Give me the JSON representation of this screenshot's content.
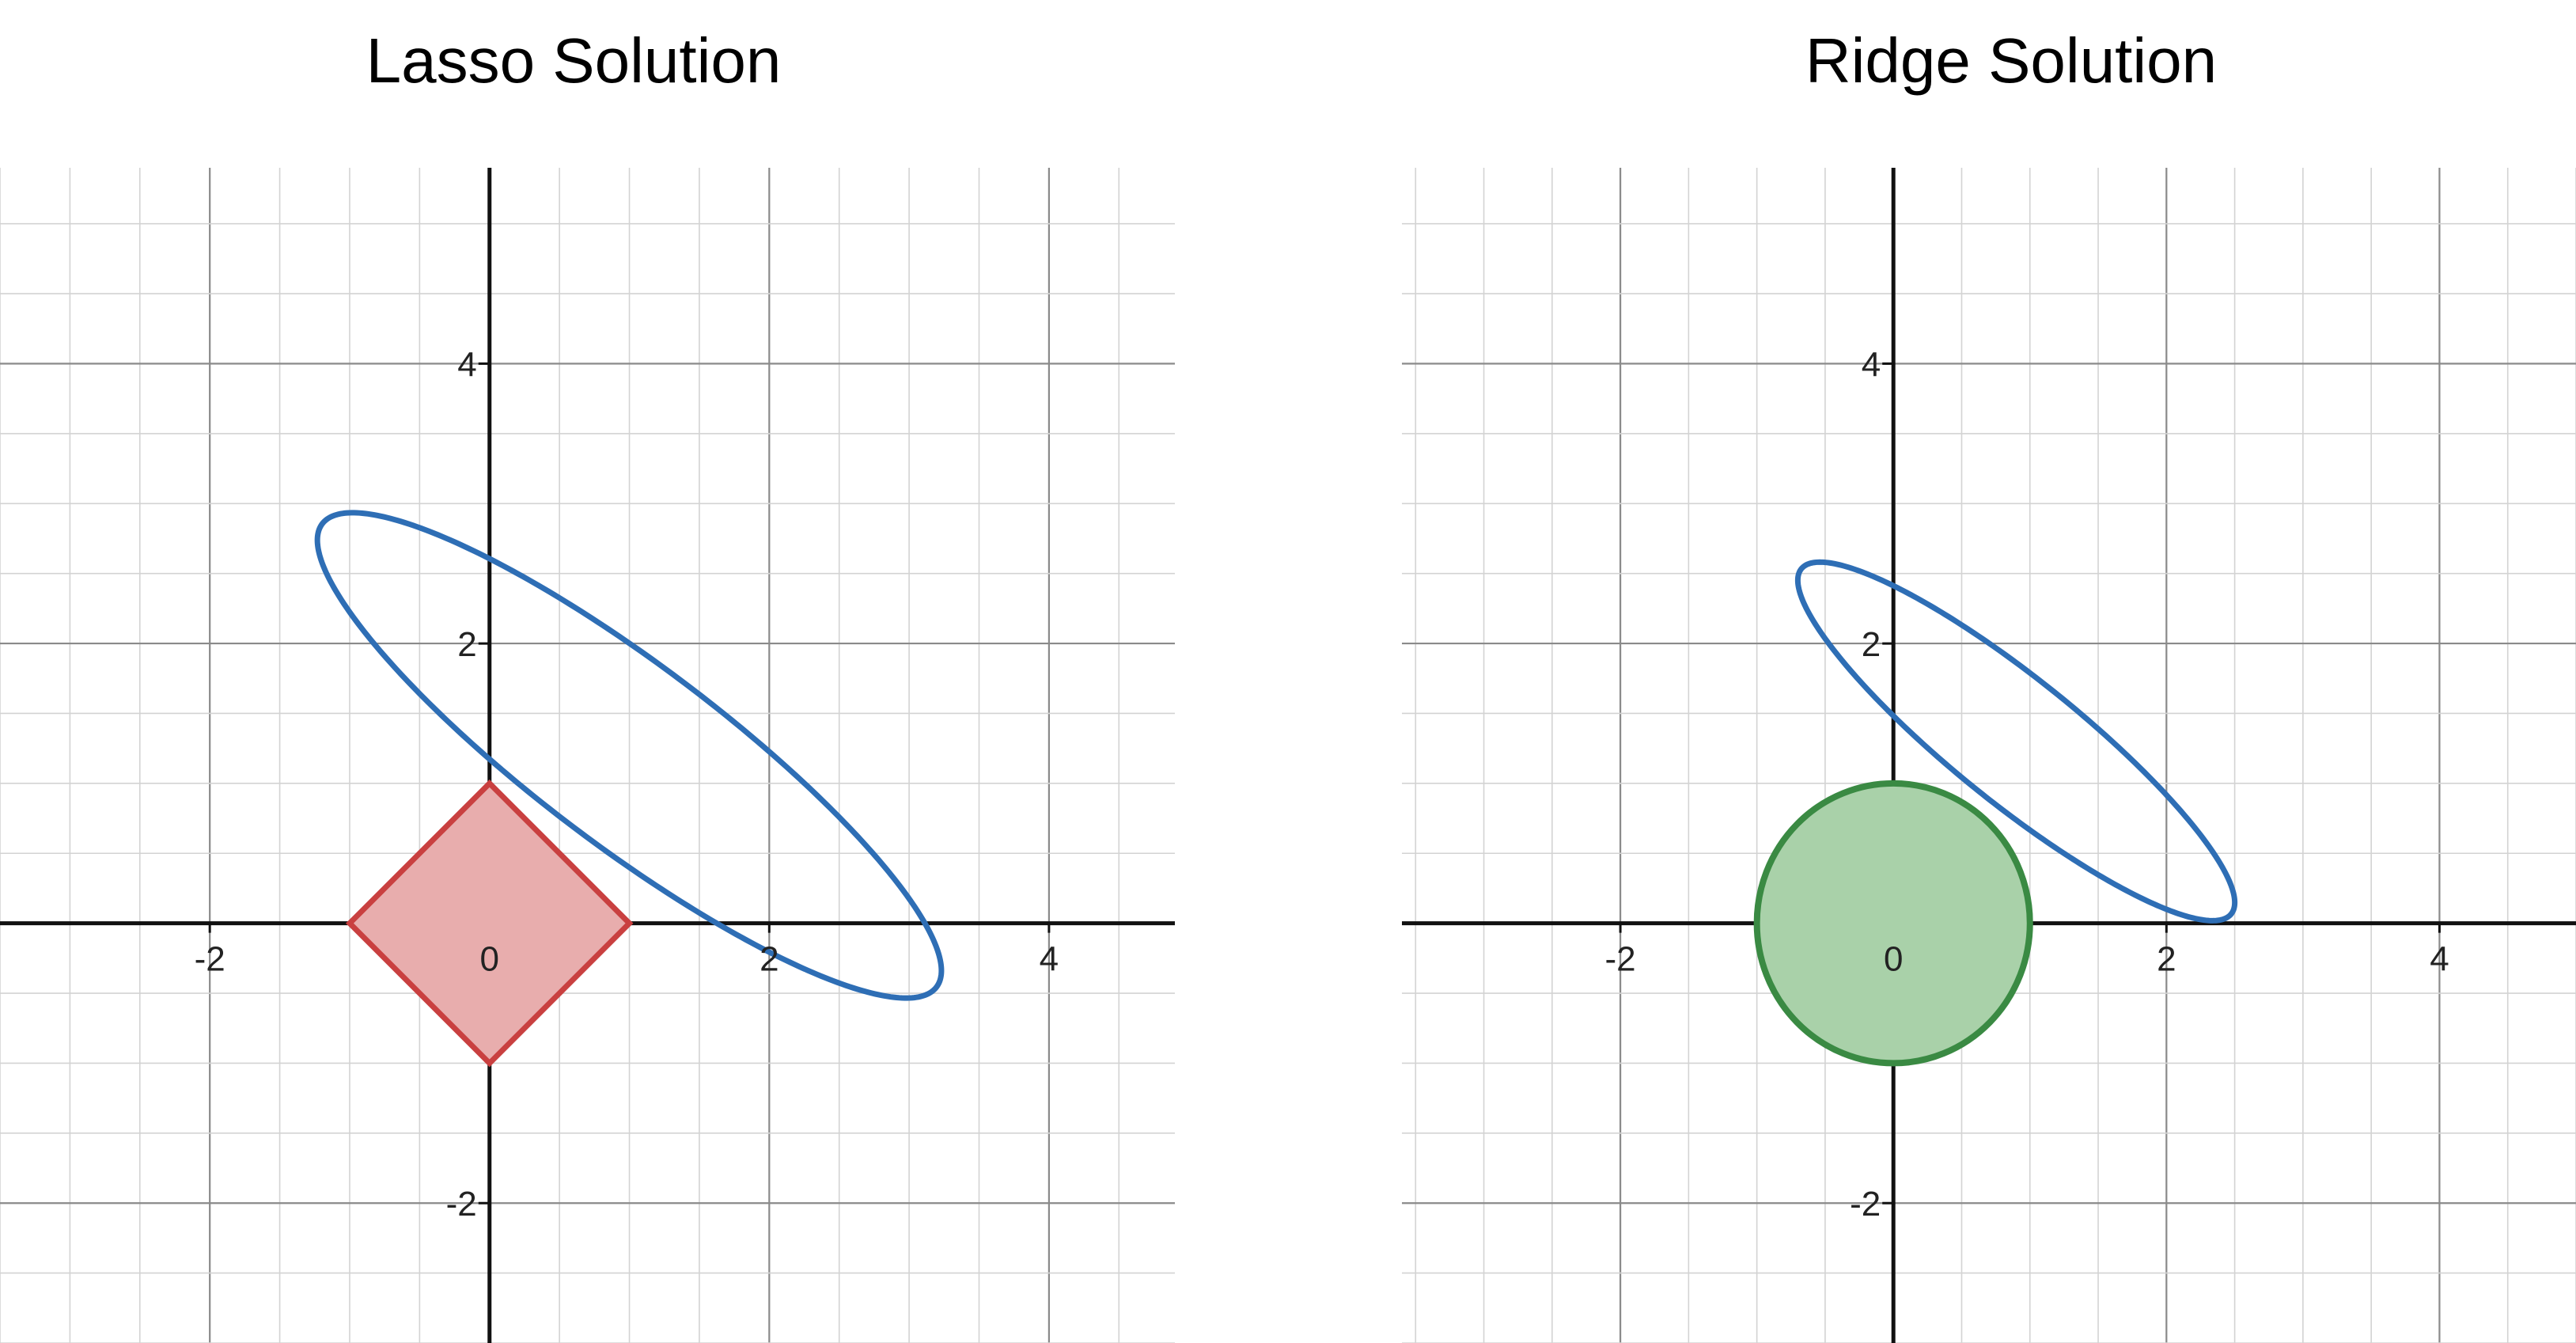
{
  "chart_data": [
    {
      "type": "line",
      "title": "Lasso Solution",
      "xlim": [
        -3.5,
        4.9
      ],
      "ylim": [
        -3.0,
        5.4
      ],
      "grid": true,
      "minor_grid_step": 0.5,
      "x_ticks": [
        -2,
        0,
        2,
        4
      ],
      "y_ticks": [
        4,
        2,
        -2
      ],
      "x_tick_labels": [
        "-2",
        "0",
        "2",
        "4"
      ],
      "y_tick_labels": [
        "4",
        "2",
        "-2"
      ],
      "constraint": {
        "kind": "diamond",
        "points": [
          [
            1,
            0
          ],
          [
            0,
            1
          ],
          [
            -1,
            0
          ],
          [
            0,
            -1
          ]
        ],
        "stroke": "#c94040",
        "fill": "#e8adad"
      },
      "ellipse": {
        "center": [
          1.0,
          1.2
        ],
        "semi_axes": [
          2.75,
          0.65
        ],
        "angle_deg": -37,
        "stroke": "#2e6eb5"
      }
    },
    {
      "type": "line",
      "title": "Ridge Solution",
      "xlim": [
        -3.6,
        5.0
      ],
      "ylim": [
        -3.0,
        5.4
      ],
      "grid": true,
      "minor_grid_step": 0.5,
      "x_ticks": [
        -2,
        0,
        2,
        4
      ],
      "y_ticks": [
        4,
        2,
        -2
      ],
      "x_tick_labels": [
        "-2",
        "0",
        "2",
        "4"
      ],
      "y_tick_labels": [
        "4",
        "2",
        "-2"
      ],
      "constraint": {
        "kind": "circle",
        "center": [
          0,
          0
        ],
        "radius": 1,
        "stroke": "#3a8a43",
        "fill": "#a9d1a9"
      },
      "ellipse": {
        "center": [
          0.9,
          1.3
        ],
        "semi_axes": [
          2.0,
          0.45
        ],
        "angle_deg": -38,
        "stroke": "#2e6eb5"
      }
    }
  ]
}
